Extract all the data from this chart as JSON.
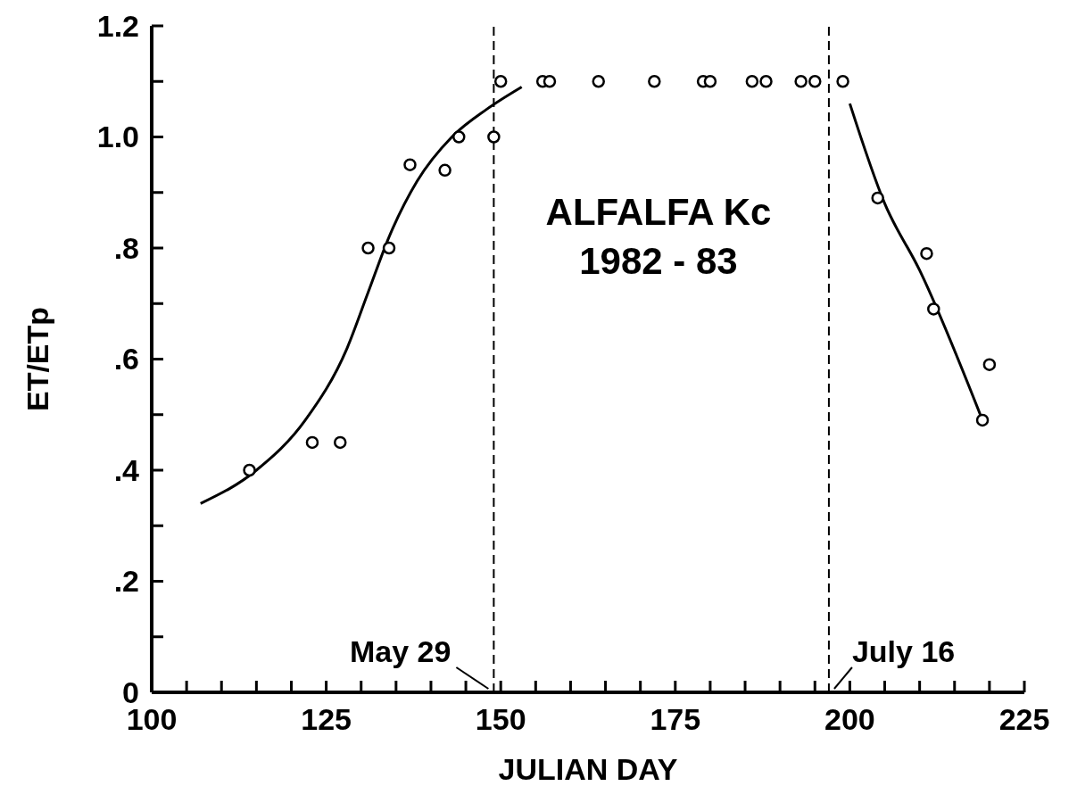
{
  "chart_data": {
    "type": "scatter",
    "xlabel": "JULIAN DAY",
    "ylabel": "ET/ETp",
    "annotations": [
      "ALFALFA Kc",
      "1982 - 83"
    ],
    "xlim": [
      100,
      225
    ],
    "xticks": [
      100,
      {
        "value": 105,
        "label": null
      },
      {
        "value": 110,
        "label": null
      },
      {
        "value": 115,
        "label": null
      },
      {
        "value": 120,
        "label": null
      },
      125,
      {
        "value": 130,
        "label": null
      },
      {
        "value": 135,
        "label": null
      },
      {
        "value": 140,
        "label": null
      },
      {
        "value": 145,
        "label": null
      },
      150,
      {
        "value": 155,
        "label": null
      },
      {
        "value": 160,
        "label": null
      },
      {
        "value": 165,
        "label": null
      },
      {
        "value": 170,
        "label": null
      },
      175,
      {
        "value": 180,
        "label": null
      },
      {
        "value": 185,
        "label": null
      },
      {
        "value": 190,
        "label": null
      },
      {
        "value": 195,
        "label": null
      },
      200,
      {
        "value": 205,
        "label": null
      },
      {
        "value": 210,
        "label": null
      },
      {
        "value": 215,
        "label": null
      },
      {
        "value": 220,
        "label": null
      },
      225
    ],
    "ylim": [
      0,
      1.2
    ],
    "yticks": [
      0,
      {
        "value": 0.1,
        "label": null
      },
      {
        "value": 0.2,
        "label": ".2"
      },
      {
        "value": 0.3,
        "label": null
      },
      {
        "value": 0.4,
        "label": ".4"
      },
      {
        "value": 0.5,
        "label": null
      },
      {
        "value": 0.6,
        "label": ".6"
      },
      {
        "value": 0.7,
        "label": null
      },
      {
        "value": 0.8,
        "label": ".8"
      },
      {
        "value": 0.9,
        "label": null
      },
      {
        "value": 1.0,
        "label": "1.0"
      },
      {
        "value": 1.1,
        "label": null
      },
      1.2
    ],
    "grid": false,
    "legend": false,
    "marker": "circle",
    "line_style": "solid",
    "series": [
      {
        "color": "#000000",
        "x": [
          114,
          123,
          127,
          131,
          134,
          137,
          142,
          144,
          149,
          150,
          156,
          157,
          164,
          172,
          179,
          180,
          186,
          188,
          193,
          195,
          199,
          204,
          211,
          212,
          220,
          219
        ],
        "values": [
          0.4,
          0.45,
          0.45,
          0.8,
          0.8,
          0.95,
          0.94,
          1.0,
          1.0,
          1.1,
          1.1,
          1.1,
          1.1,
          1.1,
          1.1,
          1.1,
          1.1,
          1.1,
          1.1,
          1.1,
          1.1,
          0.89,
          0.79,
          0.69,
          0.59,
          0.49
        ]
      },
      {
        "type": "line",
        "marker": "none",
        "color": "#000000",
        "x": [
          107,
          115,
          122,
          128,
          131,
          134,
          138,
          143,
          148,
          153
        ],
        "values": [
          0.34,
          0.4,
          0.49,
          0.62,
          0.72,
          0.82,
          0.92,
          1.0,
          1.05,
          1.09
        ]
      },
      {
        "type": "line",
        "marker": "none",
        "color": "#000000",
        "x": [
          200,
          205,
          210,
          219
        ],
        "values": [
          1.06,
          0.88,
          0.76,
          0.49
        ]
      }
    ],
    "ref_lines": [
      {
        "axis": "x",
        "value": 149,
        "label": "May 29",
        "line_style": "dashed",
        "color": "#000000"
      },
      {
        "axis": "x",
        "value": 197,
        "label": "July 16",
        "line_style": "dashed",
        "color": "#000000"
      }
    ]
  }
}
